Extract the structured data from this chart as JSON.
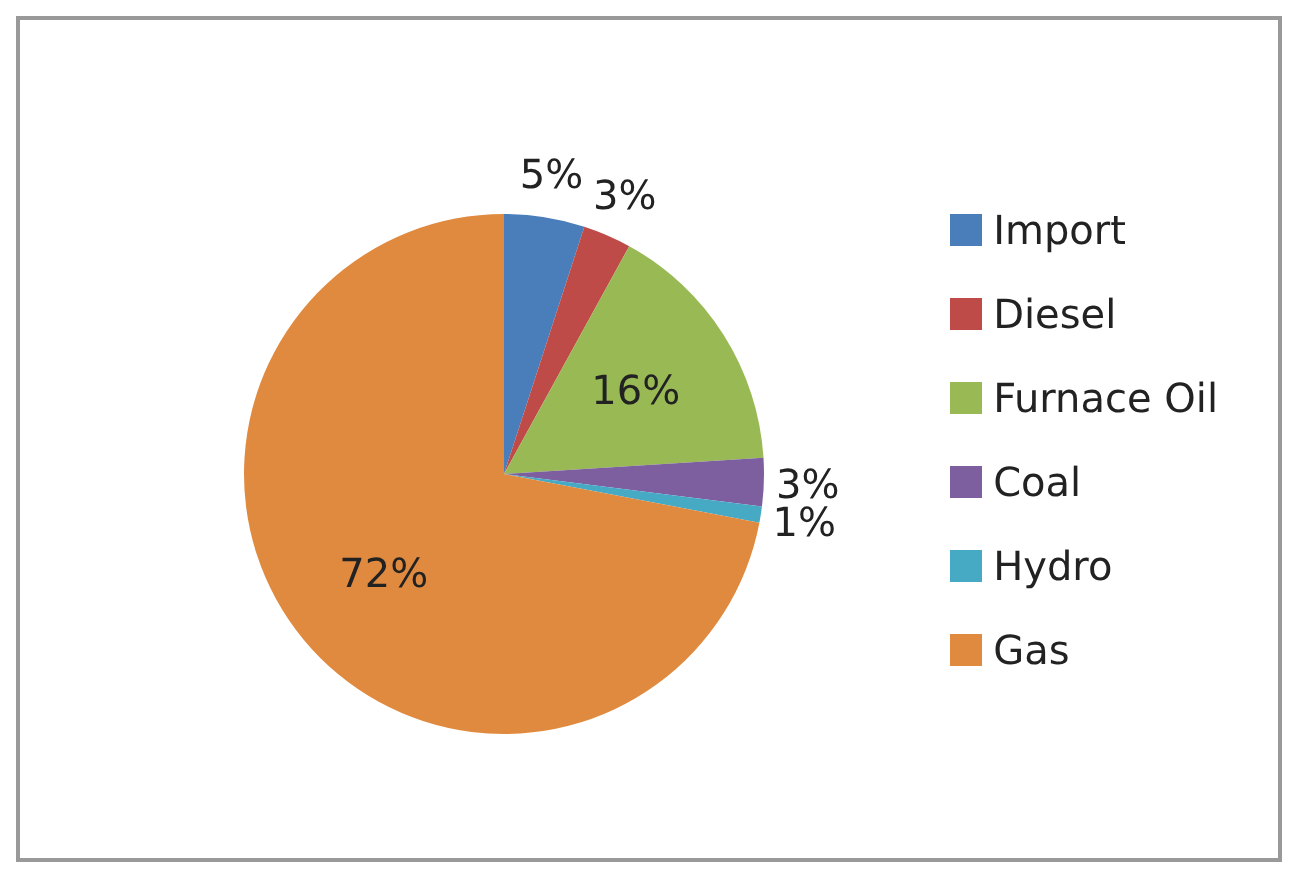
{
  "chart_data": {
    "type": "pie",
    "categories": [
      "Import",
      "Diesel",
      "Furnace Oil",
      "Coal",
      "Hydro",
      "Gas"
    ],
    "values": [
      5,
      3,
      16,
      3,
      1,
      72
    ],
    "colors": [
      "#4a7ebb",
      "#be4b48",
      "#98b954",
      "#7d5fa0",
      "#46aac5",
      "#e08a3f"
    ],
    "value_labels": [
      "5%",
      "3%",
      "16%",
      "3%",
      "1%",
      "72%"
    ],
    "legend": "right"
  }
}
